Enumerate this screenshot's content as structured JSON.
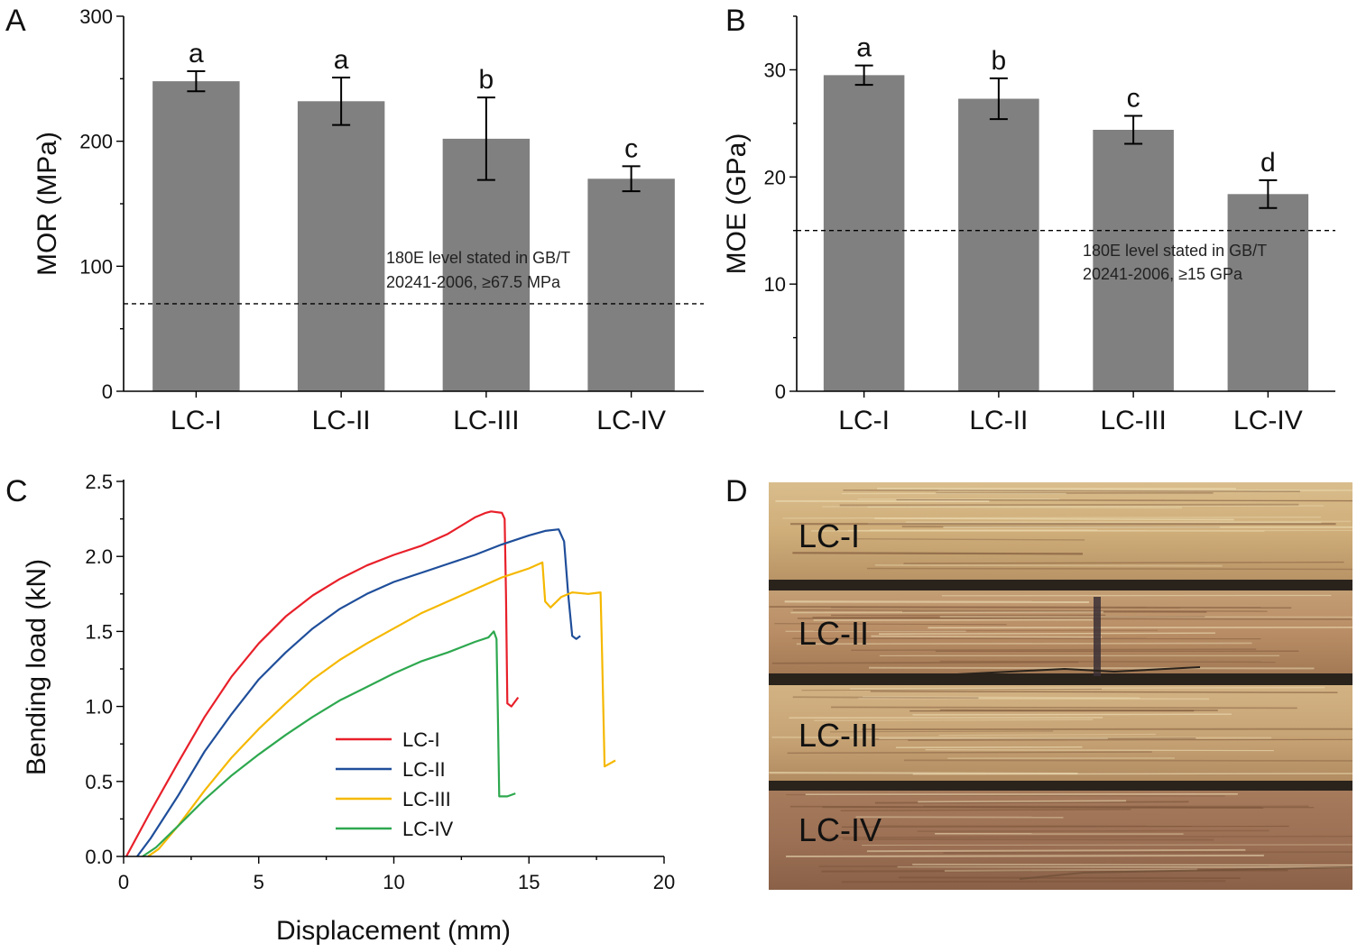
{
  "figure": {
    "panel_letters": [
      "A",
      "B",
      "C",
      "D"
    ]
  },
  "chart_data": [
    {
      "panel": "A",
      "type": "bar",
      "title": "",
      "xlabel": "",
      "ylabel": "MOR (MPa)",
      "ylim": [
        0,
        300
      ],
      "yticks": [
        0,
        100,
        200,
        300
      ],
      "categories": [
        "LC-I",
        "LC-II",
        "LC-III",
        "LC-IV"
      ],
      "values": [
        248,
        232,
        202,
        170
      ],
      "errors": [
        8,
        19,
        33,
        10
      ],
      "significance": [
        "a",
        "a",
        "b",
        "c"
      ],
      "bar_color": "#808080",
      "reference_line": {
        "value": 70,
        "style": "dashed"
      },
      "annotation": [
        "180E level stated in GB/T",
        "20241-2006, ≥67.5 MPa"
      ]
    },
    {
      "panel": "B",
      "type": "bar",
      "title": "",
      "xlabel": "",
      "ylabel": "MOE (GPa)",
      "ylim": [
        0,
        35
      ],
      "yticks": [
        0,
        10,
        20,
        30
      ],
      "categories": [
        "LC-I",
        "LC-II",
        "LC-III",
        "LC-IV"
      ],
      "values": [
        29.5,
        27.3,
        24.4,
        18.4
      ],
      "errors": [
        0.9,
        1.9,
        1.3,
        1.3
      ],
      "significance": [
        "a",
        "b",
        "c",
        "d"
      ],
      "bar_color": "#808080",
      "reference_line": {
        "value": 15,
        "style": "dashed"
      },
      "annotation": [
        "180E level stated in GB/T",
        "20241-2006, ≥15 GPa"
      ]
    },
    {
      "panel": "C",
      "type": "line",
      "title": "",
      "xlabel": "Displacement (mm)",
      "ylabel": "Bending load (kN)",
      "xlim": [
        0,
        20
      ],
      "ylim": [
        0,
        2.5
      ],
      "xticks": [
        0,
        5,
        10,
        15,
        20
      ],
      "yticks": [
        "0.0",
        "0.5",
        "1.0",
        "1.5",
        "2.0",
        "2.5"
      ],
      "legend_position": "bottom-center",
      "series": [
        {
          "name": "LC-I",
          "color": "#e8202a",
          "points": [
            [
              0.1,
              0
            ],
            [
              1,
              0.3
            ],
            [
              2,
              0.62
            ],
            [
              3,
              0.93
            ],
            [
              4,
              1.2
            ],
            [
              5,
              1.42
            ],
            [
              6,
              1.6
            ],
            [
              7,
              1.74
            ],
            [
              8,
              1.85
            ],
            [
              9,
              1.94
            ],
            [
              10,
              2.01
            ],
            [
              11,
              2.07
            ],
            [
              12,
              2.15
            ],
            [
              13,
              2.26
            ],
            [
              13.4,
              2.29
            ],
            [
              13.6,
              2.3
            ],
            [
              14,
              2.29
            ],
            [
              14.1,
              2.25
            ],
            [
              14.15,
              1.75
            ],
            [
              14.2,
              1.02
            ],
            [
              14.35,
              1.0
            ],
            [
              14.6,
              1.06
            ]
          ]
        },
        {
          "name": "LC-II",
          "color": "#1f4e9a",
          "points": [
            [
              0.5,
              0
            ],
            [
              1,
              0.12
            ],
            [
              2,
              0.4
            ],
            [
              3,
              0.7
            ],
            [
              4,
              0.95
            ],
            [
              5,
              1.18
            ],
            [
              6,
              1.36
            ],
            [
              7,
              1.52
            ],
            [
              8,
              1.65
            ],
            [
              9,
              1.75
            ],
            [
              10,
              1.83
            ],
            [
              11,
              1.89
            ],
            [
              12,
              1.95
            ],
            [
              13,
              2.01
            ],
            [
              14,
              2.08
            ],
            [
              15,
              2.14
            ],
            [
              15.6,
              2.17
            ],
            [
              16.1,
              2.18
            ],
            [
              16.3,
              2.1
            ],
            [
              16.45,
              1.75
            ],
            [
              16.6,
              1.47
            ],
            [
              16.75,
              1.45
            ],
            [
              16.9,
              1.47
            ]
          ]
        },
        {
          "name": "LC-III",
          "color": "#f5b800",
          "points": [
            [
              0.9,
              0
            ],
            [
              1.3,
              0.05
            ],
            [
              2,
              0.2
            ],
            [
              3,
              0.44
            ],
            [
              4,
              0.66
            ],
            [
              5,
              0.85
            ],
            [
              6,
              1.02
            ],
            [
              7,
              1.18
            ],
            [
              8,
              1.31
            ],
            [
              9,
              1.42
            ],
            [
              10,
              1.52
            ],
            [
              11,
              1.62
            ],
            [
              12,
              1.7
            ],
            [
              13,
              1.78
            ],
            [
              14,
              1.86
            ],
            [
              15,
              1.92
            ],
            [
              15.5,
              1.96
            ],
            [
              15.6,
              1.7
            ],
            [
              15.8,
              1.66
            ],
            [
              16.2,
              1.73
            ],
            [
              16.6,
              1.76
            ],
            [
              17.2,
              1.75
            ],
            [
              17.65,
              1.76
            ],
            [
              17.7,
              1.4
            ],
            [
              17.8,
              0.6
            ],
            [
              18.2,
              0.64
            ]
          ]
        },
        {
          "name": "LC-IV",
          "color": "#2ea84f",
          "points": [
            [
              0.7,
              0
            ],
            [
              1.2,
              0.06
            ],
            [
              2,
              0.2
            ],
            [
              3,
              0.38
            ],
            [
              4,
              0.54
            ],
            [
              5,
              0.68
            ],
            [
              6,
              0.81
            ],
            [
              7,
              0.93
            ],
            [
              8,
              1.04
            ],
            [
              9,
              1.13
            ],
            [
              10,
              1.22
            ],
            [
              11,
              1.3
            ],
            [
              12,
              1.36
            ],
            [
              13,
              1.43
            ],
            [
              13.5,
              1.46
            ],
            [
              13.7,
              1.5
            ],
            [
              13.8,
              1.45
            ],
            [
              13.85,
              0.95
            ],
            [
              13.9,
              0.4
            ],
            [
              14.2,
              0.4
            ],
            [
              14.5,
              0.42
            ]
          ]
        }
      ]
    }
  ],
  "photo": {
    "panel": "D",
    "labels": [
      "LC-I",
      "LC-II",
      "LC-III",
      "LC-IV"
    ],
    "wood_colors": [
      "#cfae7a",
      "#b98e66",
      "#c8a576",
      "#9c7054"
    ],
    "gap_color": "#2a231c",
    "mark_color": "#3b3036"
  }
}
